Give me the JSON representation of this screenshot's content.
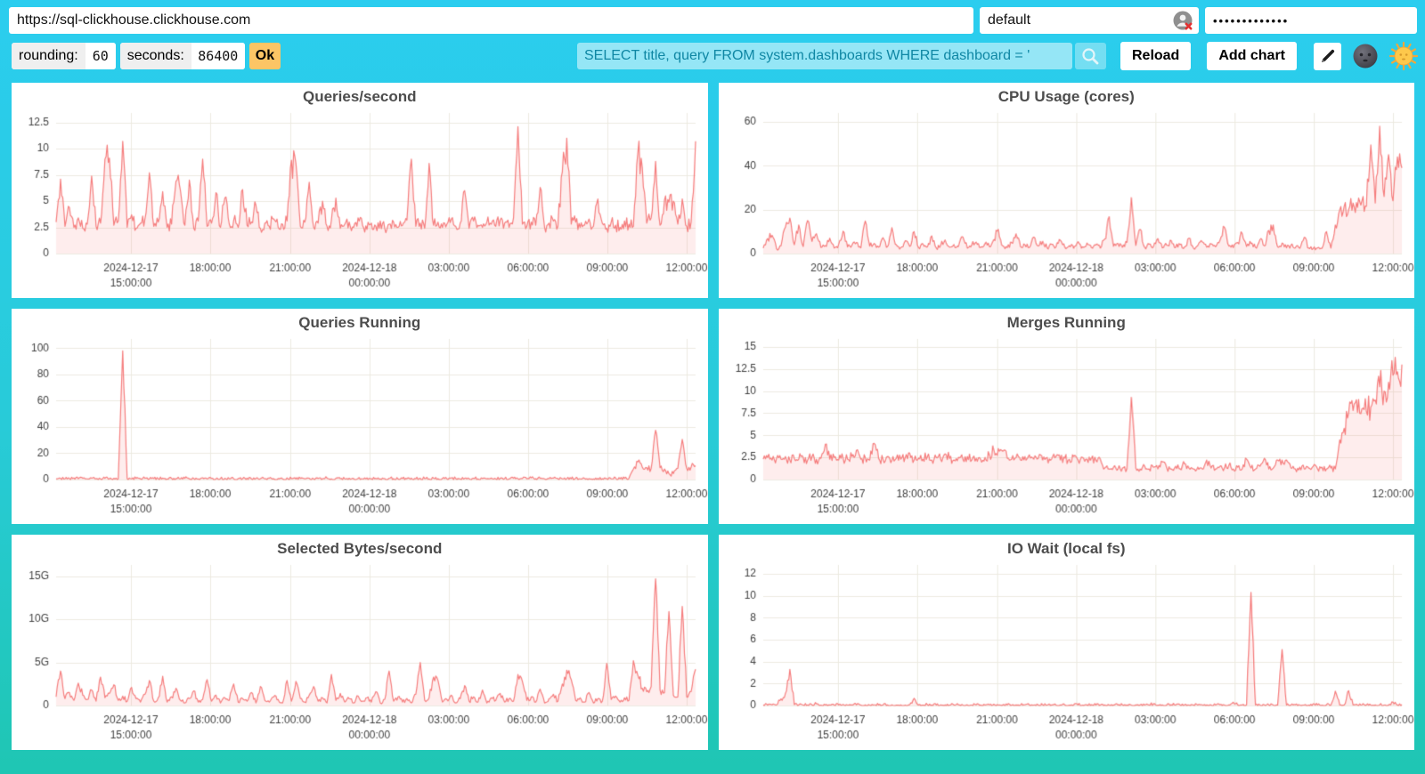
{
  "connection": {
    "url": "https://sql-clickhouse.clickhouse.com",
    "user": "default",
    "password_masked": "•••••••••••••",
    "user_icon": "user-x-icon"
  },
  "controls": {
    "rounding_label": "rounding:",
    "rounding_value": "60",
    "seconds_label": "seconds:",
    "seconds_value": "86400",
    "ok_label": "Ok",
    "query_value": "SELECT title, query FROM system.dashboards WHERE dashboard = '",
    "search_icon": "magnifier-icon",
    "reload_label": "Reload",
    "add_chart_label": "Add chart",
    "edit_icon": "pencil-icon",
    "dark_theme_icon": "moon-face-icon",
    "light_theme_icon": "sun-face-icon",
    "colors": {
      "ok_button": "#fcc565",
      "query_text": "#0f87a4",
      "background_top": "#2bcdef",
      "background_bottom": "#1fc6b3"
    }
  },
  "chart_data": {
    "type": "area",
    "common": {
      "x_range": [
        "2024-12-17 12:10:00",
        "2024-12-18 12:20:00"
      ],
      "sample_interval_minutes": 10,
      "grid": true,
      "legend": "none",
      "line_color": "#f57d7d",
      "fill_color": "rgba(245,125,125,0.14)",
      "grid_color": "#eceae0",
      "axis_color": "#3f3f3f",
      "x_ticks": [
        {
          "pos": 0.117,
          "lines": [
            "2024-12-17",
            "15:00:00"
          ]
        },
        {
          "pos": 0.241,
          "lines": [
            "18:00:00"
          ]
        },
        {
          "pos": 0.366,
          "lines": [
            "21:00:00"
          ]
        },
        {
          "pos": 0.49,
          "lines": [
            "2024-12-18",
            "00:00:00"
          ]
        },
        {
          "pos": 0.614,
          "lines": [
            "03:00:00"
          ]
        },
        {
          "pos": 0.738,
          "lines": [
            "06:00:00"
          ]
        },
        {
          "pos": 0.862,
          "lines": [
            "09:00:00"
          ]
        },
        {
          "pos": 0.986,
          "lines": [
            "12:00:00"
          ]
        }
      ]
    },
    "panels": [
      {
        "title": "Queries/second",
        "ylim": [
          0,
          13.4
        ],
        "y_ticks": [
          {
            "v": 0,
            "label": "0"
          },
          {
            "v": 2.5,
            "label": "2.5"
          },
          {
            "v": 5,
            "label": "5"
          },
          {
            "v": 7.5,
            "label": "7.5"
          },
          {
            "v": 10,
            "label": "10"
          },
          {
            "v": 12.5,
            "label": "12.5"
          }
        ],
        "values": [
          3.0,
          7.1,
          2.6,
          4.4,
          2.5,
          3.4,
          2.4,
          2.8,
          7.4,
          2.6,
          2.9,
          9.0,
          9.1,
          2.7,
          3.1,
          10.7,
          2.5,
          3.7,
          2.4,
          2.9,
          3.3,
          7.7,
          2.6,
          3.0,
          5.9,
          2.5,
          2.8,
          6.9,
          6.0,
          2.7,
          7.0,
          2.4,
          3.1,
          9.0,
          2.6,
          2.9,
          5.8,
          2.5,
          5.3,
          2.8,
          3.2,
          2.5,
          6.1,
          2.7,
          3.0,
          4.6,
          2.4,
          2.9,
          2.6,
          3.3,
          2.5,
          2.8,
          3.1,
          8.9,
          8.6,
          2.6,
          3.0,
          6.8,
          2.5,
          2.9,
          5.0,
          2.6,
          3.2,
          5.3,
          2.4,
          2.8,
          3.0,
          2.5,
          3.4,
          2.7,
          2.3,
          2.9,
          2.6,
          3.1,
          2.4,
          2.8,
          3.0,
          2.5,
          2.7,
          3.2,
          9.0,
          2.6,
          2.9,
          2.4,
          8.6,
          2.7,
          3.0,
          2.5,
          2.8,
          3.3,
          2.6,
          2.9,
          6.0,
          2.4,
          3.1,
          2.7,
          2.5,
          3.0,
          2.8,
          2.6,
          3.2,
          2.9,
          2.5,
          3.4,
          12.1,
          2.8,
          2.6,
          3.0,
          2.7,
          6.3,
          2.5,
          2.9,
          3.1,
          2.6,
          7.8,
          11.0,
          2.8,
          3.0,
          2.5,
          2.7,
          3.3,
          2.6,
          5.2,
          2.9,
          2.4,
          3.0,
          2.7,
          2.5,
          3.1,
          2.8,
          2.6,
          9.6,
          8.2,
          2.9,
          3.4,
          8.8,
          2.7,
          5.1,
          4.9,
          5.0,
          2.8,
          5.2,
          2.6,
          3.0,
          10.7
        ]
      },
      {
        "title": "CPU Usage (cores)",
        "ylim": [
          0,
          64
        ],
        "y_ticks": [
          {
            "v": 0,
            "label": "0"
          },
          {
            "v": 20,
            "label": "20"
          },
          {
            "v": 40,
            "label": "40"
          },
          {
            "v": 60,
            "label": "60"
          }
        ],
        "values": [
          2.5,
          6.8,
          8.3,
          2.2,
          3.5,
          12.0,
          16.2,
          4.0,
          13.0,
          3.2,
          15.0,
          5.5,
          9.0,
          2.8,
          3.6,
          7.0,
          2.5,
          4.2,
          10.2,
          3.0,
          3.8,
          5.0,
          2.6,
          14.8,
          3.4,
          4.6,
          2.9,
          7.2,
          3.1,
          11.8,
          4.0,
          2.7,
          5.8,
          3.3,
          10.0,
          2.8,
          4.4,
          3.0,
          8.0,
          2.6,
          3.7,
          6.2,
          2.9,
          4.1,
          3.2,
          7.6,
          2.5,
          3.9,
          5.2,
          2.8,
          4.5,
          3.1,
          6.4,
          11.0,
          3.5,
          2.7,
          5.0,
          9.0,
          3.2,
          4.0,
          2.8,
          7.5,
          3.4,
          5.6,
          2.6,
          4.2,
          3.0,
          6.0,
          2.9,
          3.6,
          2.4,
          5.4,
          3.1,
          4.8,
          2.7,
          3.9,
          2.5,
          6.6,
          16.8,
          3.3,
          4.6,
          2.8,
          5.1,
          25.5,
          3.7,
          11.0,
          2.9,
          4.3,
          3.2,
          6.8,
          2.6,
          3.8,
          5.9,
          2.8,
          4.1,
          3.0,
          7.0,
          2.5,
          3.6,
          5.3,
          2.9,
          4.4,
          3.1,
          6.1,
          12.0,
          3.4,
          2.7,
          5.0,
          9.2,
          3.2,
          4.6,
          2.8,
          6.3,
          3.5,
          10.5,
          13.0,
          3.0,
          4.8,
          2.6,
          3.9,
          2.6,
          2.4,
          7.4,
          2.5,
          2.3,
          2.6,
          2.4,
          10.0,
          2.5,
          13.0,
          20.0,
          21.5,
          20.0,
          23.0,
          21.0,
          24.0,
          21.5,
          49.5,
          23.0,
          58.0,
          26.0,
          45.0,
          24.0,
          44.0,
          39.0
        ]
      },
      {
        "title": "Queries Running",
        "ylim": [
          0,
          107
        ],
        "y_ticks": [
          {
            "v": 0,
            "label": "0"
          },
          {
            "v": 20,
            "label": "20"
          },
          {
            "v": 40,
            "label": "40"
          },
          {
            "v": 60,
            "label": "60"
          },
          {
            "v": 80,
            "label": "80"
          },
          {
            "v": 100,
            "label": "100"
          }
        ],
        "values": [
          0.6,
          1.0,
          0.5,
          0.8,
          1.2,
          0.6,
          0.9,
          0.5,
          1.1,
          0.7,
          0.5,
          0.9,
          0.6,
          1.0,
          0.5,
          98.0,
          0.7,
          0.5,
          0.9,
          0.6,
          1.0,
          0.5,
          0.8,
          0.6,
          1.1,
          0.5,
          0.9,
          0.7,
          0.5,
          1.0,
          0.6,
          0.8,
          0.5,
          1.3,
          0.6,
          0.9,
          0.5,
          0.7,
          1.0,
          0.6,
          0.5,
          0.8,
          0.6,
          1.1,
          0.5,
          0.9,
          0.7,
          0.5,
          1.0,
          0.6,
          0.8,
          0.5,
          1.2,
          0.7,
          0.5,
          0.9,
          0.6,
          1.0,
          0.5,
          0.8,
          0.6,
          1.1,
          0.5,
          0.9,
          0.7,
          0.5,
          1.0,
          0.6,
          0.8,
          0.5,
          1.3,
          0.6,
          0.9,
          0.5,
          0.7,
          1.0,
          0.6,
          0.5,
          0.8,
          0.6,
          1.1,
          0.5,
          0.9,
          0.7,
          0.5,
          1.0,
          0.6,
          0.8,
          0.5,
          1.2,
          0.7,
          0.5,
          0.9,
          0.6,
          1.0,
          0.5,
          0.8,
          0.6,
          1.1,
          0.5,
          0.9,
          0.7,
          0.5,
          1.0,
          0.6,
          0.8,
          0.5,
          1.3,
          0.6,
          0.9,
          0.5,
          0.7,
          1.0,
          0.6,
          0.5,
          0.8,
          0.6,
          1.1,
          0.5,
          0.9,
          0.7,
          0.5,
          1.0,
          0.6,
          0.8,
          0.5,
          1.2,
          0.6,
          0.9,
          1.0,
          8.0,
          13.5,
          9.5,
          9.0,
          8.5,
          37.5,
          9.0,
          8.0,
          4.5,
          4.5,
          8.5,
          30.5,
          8.5,
          9.5,
          10.5
        ]
      },
      {
        "title": "Merges Running",
        "ylim": [
          0,
          15.9
        ],
        "y_ticks": [
          {
            "v": 0,
            "label": "0"
          },
          {
            "v": 2.5,
            "label": "2.5"
          },
          {
            "v": 5,
            "label": "5"
          },
          {
            "v": 7.5,
            "label": "7.5"
          },
          {
            "v": 10,
            "label": "10"
          },
          {
            "v": 12.5,
            "label": "12.5"
          },
          {
            "v": 15,
            "label": "15"
          }
        ],
        "values": [
          2.3,
          2.5,
          2.2,
          2.4,
          2.3,
          2.6,
          2.2,
          2.4,
          2.3,
          2.5,
          2.2,
          2.6,
          2.3,
          2.4,
          4.0,
          2.3,
          2.5,
          2.2,
          2.4,
          2.3,
          2.6,
          3.3,
          2.3,
          2.5,
          2.2,
          4.1,
          2.4,
          2.3,
          2.6,
          2.2,
          2.4,
          2.3,
          2.5,
          3.0,
          2.2,
          2.4,
          2.3,
          2.6,
          2.2,
          2.5,
          2.3,
          2.9,
          2.4,
          2.2,
          2.5,
          2.3,
          2.6,
          2.2,
          2.4,
          2.3,
          2.5,
          2.8,
          3.3,
          3.5,
          3.2,
          2.4,
          2.3,
          2.5,
          2.2,
          2.6,
          2.8,
          2.3,
          2.4,
          2.2,
          2.5,
          2.3,
          2.6,
          2.2,
          2.4,
          2.3,
          2.6,
          2.2,
          2.5,
          2.3,
          2.4,
          2.2,
          2.3,
          1.3,
          1.2,
          1.4,
          1.2,
          1.3,
          1.2,
          9.3,
          1.3,
          1.2,
          1.5,
          1.2,
          1.4,
          1.2,
          2.0,
          1.3,
          1.2,
          1.5,
          1.2,
          1.8,
          1.3,
          1.2,
          1.4,
          1.2,
          2.2,
          1.3,
          1.2,
          1.5,
          1.3,
          1.6,
          1.2,
          1.4,
          1.2,
          2.3,
          1.3,
          1.2,
          1.5,
          2.4,
          1.2,
          1.3,
          2.2,
          2.2,
          2.2,
          1.3,
          1.2,
          1.4,
          1.2,
          1.3,
          1.5,
          1.2,
          1.4,
          1.2,
          1.3,
          1.2,
          4.5,
          5.8,
          7.5,
          7.8,
          7.6,
          8.0,
          7.7,
          8.2,
          9.0,
          10.5,
          10.0,
          11.0,
          11.8,
          12.2,
          13.0
        ]
      },
      {
        "title": "Selected Bytes/second",
        "unit": "G",
        "ylim": [
          0,
          16.3
        ],
        "y_ticks": [
          {
            "v": 0,
            "label": "0"
          },
          {
            "v": 5,
            "label": "5G"
          },
          {
            "v": 10,
            "label": "10G"
          },
          {
            "v": 15,
            "label": "15G"
          }
        ],
        "values": [
          1.0,
          4.0,
          0.8,
          1.5,
          0.6,
          2.6,
          1.2,
          0.7,
          1.8,
          0.5,
          3.3,
          0.9,
          1.4,
          2.4,
          0.6,
          1.1,
          0.5,
          2.1,
          0.8,
          0.4,
          1.3,
          2.9,
          0.5,
          0.9,
          3.4,
          0.4,
          1.0,
          2.0,
          0.6,
          0.3,
          0.8,
          1.7,
          0.4,
          0.7,
          3.0,
          0.5,
          1.2,
          0.3,
          0.9,
          0.6,
          2.5,
          0.4,
          0.8,
          0.5,
          1.5,
          0.3,
          2.2,
          0.6,
          0.4,
          1.0,
          0.7,
          0.3,
          2.9,
          0.5,
          2.8,
          0.8,
          0.4,
          1.2,
          2.2,
          0.5,
          0.9,
          0.3,
          3.6,
          0.6,
          1.4,
          0.4,
          0.8,
          0.3,
          1.1,
          0.5,
          0.9,
          0.4,
          1.6,
          0.3,
          0.7,
          4.0,
          0.5,
          1.0,
          0.4,
          0.8,
          0.3,
          1.3,
          5.0,
          0.6,
          0.9,
          3.3,
          2.9,
          0.4,
          0.7,
          1.2,
          0.3,
          0.8,
          2.3,
          0.5,
          1.0,
          0.4,
          1.8,
          0.3,
          0.9,
          0.6,
          1.4,
          0.4,
          0.8,
          0.5,
          3.6,
          2.8,
          0.6,
          1.0,
          0.4,
          1.9,
          0.3,
          0.8,
          1.3,
          0.5,
          2.5,
          4.1,
          3.0,
          0.6,
          0.9,
          0.4,
          1.5,
          0.3,
          0.8,
          0.5,
          4.9,
          0.7,
          1.1,
          0.4,
          0.9,
          0.6,
          5.2,
          3.5,
          2.0,
          1.6,
          2.2,
          14.7,
          1.8,
          1.5,
          10.9,
          1.2,
          1.0,
          11.5,
          1.0,
          1.6,
          4.2
        ]
      },
      {
        "title": "IO Wait (local fs)",
        "ylim": [
          0,
          12.8
        ],
        "y_ticks": [
          {
            "v": 0,
            "label": "0"
          },
          {
            "v": 2,
            "label": "2"
          },
          {
            "v": 4,
            "label": "4"
          },
          {
            "v": 6,
            "label": "6"
          },
          {
            "v": 8,
            "label": "8"
          },
          {
            "v": 10,
            "label": "10"
          },
          {
            "v": 12,
            "label": "12"
          }
        ],
        "values": [
          0.05,
          0.04,
          0.06,
          0.05,
          0.6,
          1.1,
          3.3,
          0.08,
          0.05,
          0.04,
          0.06,
          0.05,
          0.15,
          0.04,
          0.05,
          0.06,
          0.04,
          0.05,
          0.1,
          0.04,
          0.05,
          0.06,
          0.04,
          0.05,
          0.04,
          0.06,
          0.05,
          0.04,
          0.05,
          0.06,
          0.04,
          0.05,
          0.04,
          0.06,
          0.65,
          0.05,
          0.04,
          0.08,
          0.05,
          0.04,
          0.06,
          0.05,
          0.04,
          0.05,
          0.06,
          0.04,
          0.05,
          0.04,
          0.06,
          0.05,
          0.04,
          0.05,
          0.12,
          0.04,
          0.05,
          0.06,
          0.04,
          0.05,
          0.04,
          0.06,
          0.05,
          0.04,
          0.05,
          0.06,
          0.04,
          0.05,
          0.04,
          0.06,
          0.05,
          0.04,
          0.05,
          0.06,
          0.04,
          0.05,
          0.08,
          0.04,
          0.05,
          0.06,
          0.04,
          0.05,
          0.04,
          0.06,
          0.05,
          0.04,
          0.05,
          0.06,
          0.04,
          0.05,
          0.15,
          0.04,
          0.06,
          0.05,
          0.08,
          0.04,
          0.05,
          0.06,
          0.04,
          0.05,
          0.04,
          0.06,
          0.05,
          0.04,
          0.05,
          0.06,
          0.04,
          0.05,
          0.3,
          0.05,
          0.04,
          0.06,
          10.3,
          0.05,
          0.04,
          0.06,
          0.05,
          0.04,
          0.05,
          5.1,
          0.04,
          0.05,
          0.06,
          0.04,
          0.05,
          0.04,
          0.15,
          0.05,
          0.04,
          0.06,
          0.05,
          1.3,
          0.04,
          0.05,
          1.35,
          0.05,
          0.04,
          0.06,
          0.05,
          0.04,
          0.05,
          0.06,
          0.04,
          0.05,
          0.3,
          0.05,
          0.08
        ]
      }
    ]
  }
}
